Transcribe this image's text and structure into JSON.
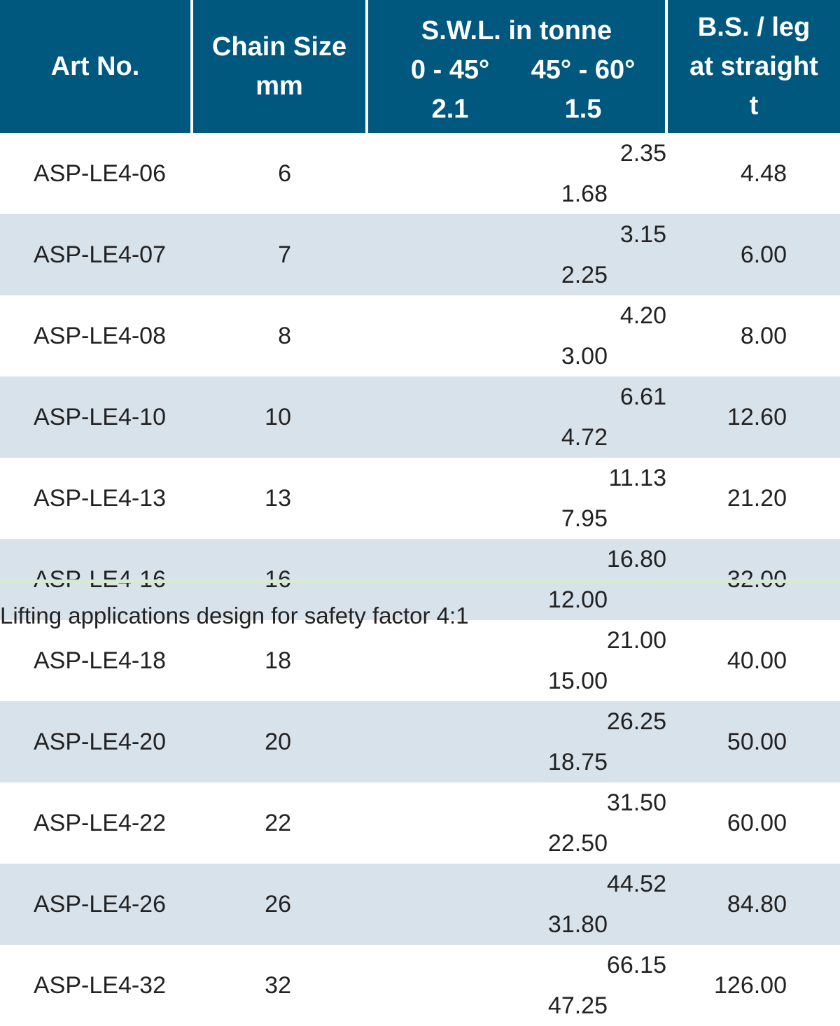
{
  "header": {
    "art_no": "Art No.",
    "chain_size_line1": "Chain Size",
    "chain_size_line2": "mm",
    "swl_title": "S.W.L. in tonne",
    "swl_range_a": "0 - 45°",
    "swl_factor_a": "2.1",
    "swl_range_b": "45° - 60°",
    "swl_factor_b": "1.5",
    "bs_line1": "B.S. / leg",
    "bs_line2": "at straight",
    "bs_line3": "t"
  },
  "rows": [
    {
      "art": "ASP-LE4-06",
      "size": "6",
      "swl_a": "2.35",
      "swl_b": "1.68",
      "bs": "4.48"
    },
    {
      "art": "ASP-LE4-07",
      "size": "7",
      "swl_a": "3.15",
      "swl_b": "2.25",
      "bs": "6.00"
    },
    {
      "art": "ASP-LE4-08",
      "size": "8",
      "swl_a": "4.20",
      "swl_b": "3.00",
      "bs": "8.00"
    },
    {
      "art": "ASP-LE4-10",
      "size": "10",
      "swl_a": "6.61",
      "swl_b": "4.72",
      "bs": "12.60"
    },
    {
      "art": "ASP-LE4-13",
      "size": "13",
      "swl_a": "11.13",
      "swl_b": "7.95",
      "bs": "21.20"
    },
    {
      "art": "ASP-LE4-16",
      "size": "16",
      "swl_a": "16.80",
      "swl_b": "12.00",
      "bs": "32.00"
    },
    {
      "art": "ASP-LE4-18",
      "size": "18",
      "swl_a": "21.00",
      "swl_b": "15.00",
      "bs": "40.00"
    },
    {
      "art": "ASP-LE4-20",
      "size": "20",
      "swl_a": "26.25",
      "swl_b": "18.75",
      "bs": "50.00"
    },
    {
      "art": "ASP-LE4-22",
      "size": "22",
      "swl_a": "31.50",
      "swl_b": "22.50",
      "bs": "60.00"
    },
    {
      "art": "ASP-LE4-26",
      "size": "26",
      "swl_a": "44.52",
      "swl_b": "31.80",
      "bs": "84.80"
    },
    {
      "art": "ASP-LE4-32",
      "size": "32",
      "swl_a": "66.15",
      "swl_b": "47.25",
      "bs": "126.00"
    }
  ],
  "footnote": "Lifting applications design for safety factor 4:1",
  "colors": {
    "header_bg": "#00587e",
    "header_text": "#ffffff",
    "stripe": "#d8e2eb",
    "bottom_rule": "#d6ead2"
  }
}
